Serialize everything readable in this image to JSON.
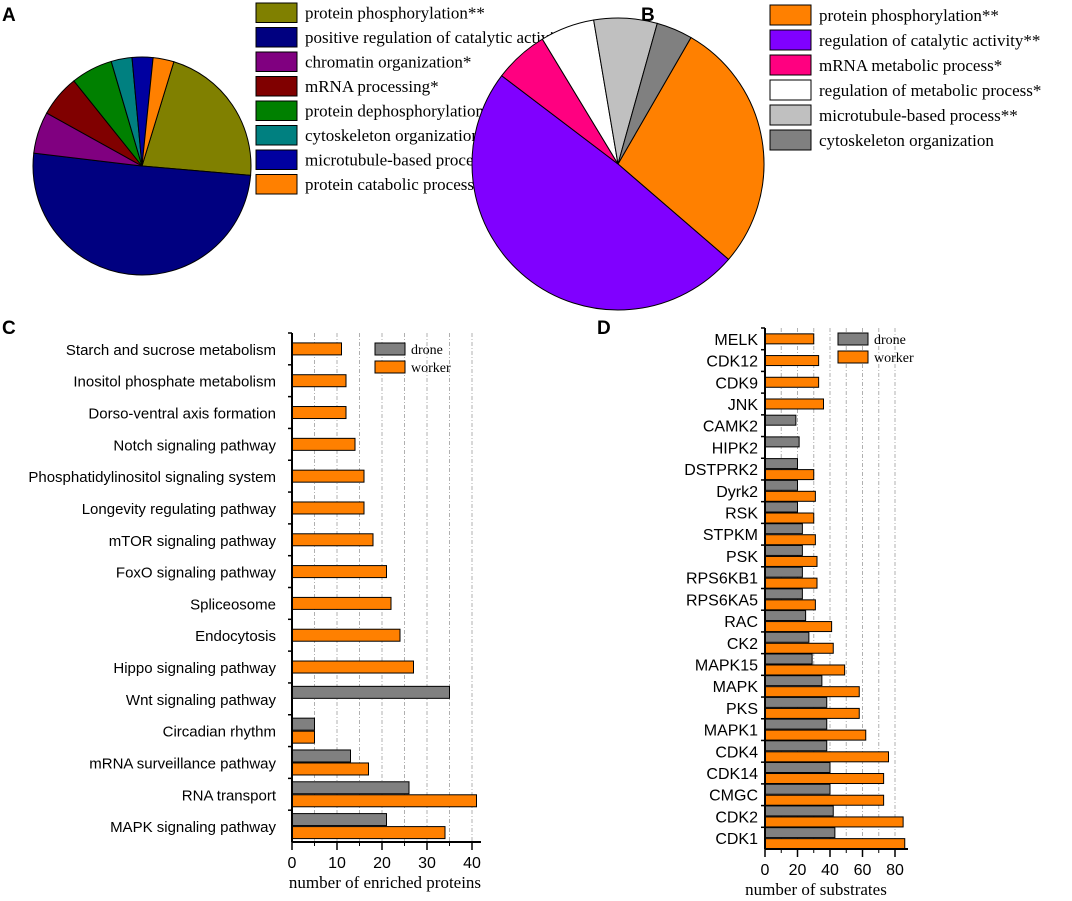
{
  "chart_data": [
    {
      "panel": "A",
      "type": "pie",
      "labels": [
        "protein phosphorylation**",
        "positive regulation of catalytic activity*",
        "chromatin organization*",
        "mRNA processing*",
        "protein dephosphorylation",
        "cytoskeleton organization",
        "microtubule-based process",
        "protein catabolic process"
      ],
      "values": [
        21,
        49,
        6,
        6,
        6,
        3,
        3,
        3
      ],
      "colors": [
        "#808000",
        "#000080",
        "#800080",
        "#800000",
        "#008000",
        "#008080",
        "#0000a0",
        "#ff8000"
      ],
      "start_angle_deg": 17
    },
    {
      "panel": "B",
      "type": "pie",
      "labels": [
        "protein phosphorylation**",
        "regulation of catalytic activity**",
        "mRNA metabolic process*",
        "regulation of metabolic process*",
        "microtubule-based process**",
        "cytoskeleton organization"
      ],
      "values": [
        28,
        49,
        6,
        6,
        7,
        4
      ],
      "colors": [
        "#ff8000",
        "#8000ff",
        "#ff0080",
        "#ffffff",
        "#c0c0c0",
        "#808080"
      ],
      "start_angle_deg": 30
    },
    {
      "panel": "C",
      "type": "bar",
      "orientation": "horizontal",
      "categories": [
        "Starch and sucrose metabolism",
        "Inositol phosphate metabolism",
        "Dorso-ventral axis formation",
        "Notch signaling pathway",
        "Phosphatidylinositol signaling system",
        "Longevity regulating pathway",
        "mTOR signaling pathway",
        "FoxO signaling pathway",
        "Spliceosome",
        "Endocytosis",
        "Hippo signaling pathway",
        "Wnt signaling pathway",
        "Circadian rhythm",
        "mRNA surveillance pathway",
        "RNA transport",
        "MAPK signaling pathway"
      ],
      "series": [
        {
          "name": "drone",
          "color": "#808080",
          "values": [
            0,
            0,
            0,
            0,
            0,
            0,
            0,
            0,
            0,
            0,
            0,
            35,
            5,
            13,
            26,
            21
          ]
        },
        {
          "name": "worker",
          "color": "#ff8000",
          "values": [
            11,
            12,
            12,
            14,
            16,
            16,
            18,
            21,
            22,
            24,
            27,
            0,
            5,
            17,
            41,
            34
          ]
        }
      ],
      "xlabel": "number of enriched proteins",
      "xlim": [
        0,
        42
      ],
      "xticks": [
        0,
        10,
        20,
        30,
        40
      ],
      "grid": true,
      "legend": "top-right"
    },
    {
      "panel": "D",
      "type": "bar",
      "orientation": "horizontal",
      "categories": [
        "MELK",
        "CDK12",
        "CDK9",
        "JNK",
        "CAMK2",
        "HIPK2",
        "DSTPRK2",
        "Dyrk2",
        "RSK",
        "STPKM",
        "PSK",
        "RPS6KB1",
        "RPS6KA5",
        "RAC",
        "CK2",
        "MAPK15",
        "MAPK",
        "PKS",
        "MAPK1",
        "CDK4",
        "CDK14",
        "CMGC",
        "CDK2",
        "CDK1"
      ],
      "series": [
        {
          "name": "drone",
          "color": "#808080",
          "values": [
            0,
            0,
            0,
            0,
            19,
            21,
            20,
            20,
            20,
            23,
            23,
            23,
            23,
            25,
            27,
            29,
            35,
            38,
            38,
            38,
            40,
            40,
            42,
            43
          ]
        },
        {
          "name": "worker",
          "color": "#ff8000",
          "values": [
            30,
            33,
            33,
            36,
            0,
            0,
            30,
            31,
            30,
            31,
            32,
            32,
            31,
            41,
            42,
            49,
            58,
            58,
            62,
            76,
            73,
            73,
            85,
            86
          ]
        }
      ],
      "xlabel": "number of substrates",
      "xlim": [
        0,
        88
      ],
      "xticks": [
        0,
        20,
        40,
        60,
        80
      ],
      "grid": true,
      "legend": "top-right"
    }
  ]
}
